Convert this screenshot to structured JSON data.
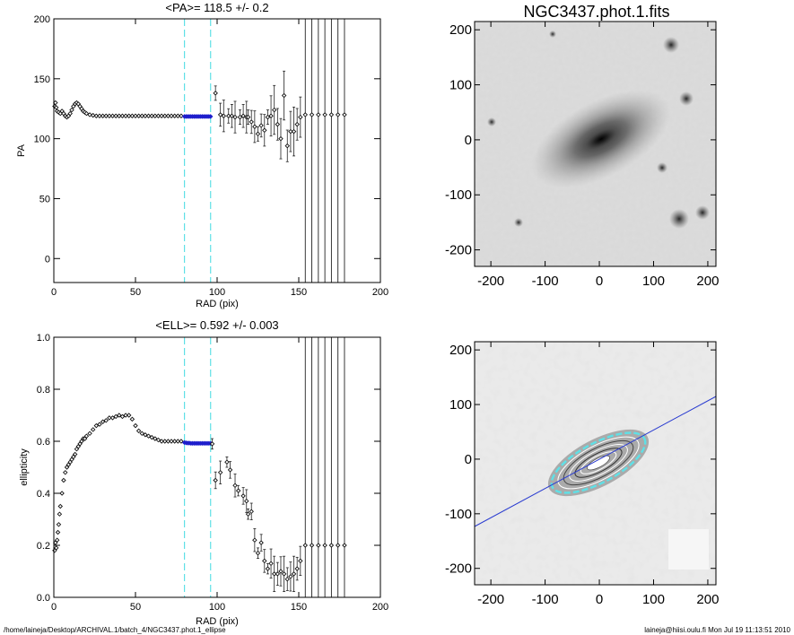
{
  "chart_data": [
    {
      "type": "scatter",
      "title": "<PA>= 118.5 +/-   0.2",
      "xlabel": "RAD (pix)",
      "ylabel": "PA",
      "xlim": [
        0,
        200
      ],
      "ylim": [
        -20,
        200
      ],
      "xticks": [
        0,
        50,
        100,
        150,
        200
      ],
      "yticks": [
        0,
        50,
        100,
        150,
        200
      ],
      "fit_range": [
        80,
        96
      ],
      "series": [
        {
          "x": [
            0.5,
            1,
            1.5,
            2,
            3,
            4,
            5,
            6,
            7,
            8,
            9,
            10,
            11,
            12,
            13,
            14,
            15,
            16,
            17,
            18,
            19,
            20,
            22,
            24,
            26,
            28,
            30,
            32,
            34,
            36,
            38,
            40,
            42,
            44,
            46,
            48,
            50,
            52,
            54,
            56,
            58,
            60,
            62,
            64,
            66,
            68,
            70,
            72,
            74,
            76,
            78
          ],
          "y": [
            127,
            130,
            126,
            123,
            122,
            121,
            123,
            121,
            119,
            118,
            119,
            121,
            124,
            127,
            129,
            130,
            129,
            127,
            125,
            123,
            122,
            121,
            120,
            119.5,
            119,
            119,
            119,
            119,
            119,
            119,
            119,
            119,
            119,
            119,
            119,
            119,
            119,
            119,
            119,
            119,
            119,
            119,
            119,
            119,
            119,
            119,
            119,
            119,
            119,
            119,
            119
          ]
        },
        {
          "x": [
            80,
            81,
            82,
            83,
            84,
            85,
            86,
            87,
            88,
            89,
            90,
            91,
            92,
            93,
            94,
            95,
            96
          ],
          "y": [
            118.5,
            118.5,
            118.5,
            118.5,
            118.5,
            118.5,
            118.5,
            118.5,
            118.5,
            118.5,
            118.5,
            118.5,
            118.5,
            118.5,
            118.5,
            118.5,
            118.5
          ]
        },
        {
          "x": [
            99,
            102,
            104,
            107,
            109,
            111,
            114,
            116,
            118,
            119,
            121,
            123,
            125,
            127,
            129,
            131,
            133,
            135,
            137,
            139,
            141,
            143,
            145,
            147,
            149,
            151
          ],
          "y": [
            138,
            120,
            119,
            119,
            119,
            118,
            118,
            119,
            118,
            118,
            114,
            110,
            104,
            111,
            107,
            118,
            119,
            124,
            112,
            100,
            136,
            94,
            106,
            106,
            112,
            118
          ]
        },
        {
          "x": [
            154,
            158,
            162,
            166,
            170,
            174,
            178
          ],
          "y": [
            120,
            120,
            120,
            120,
            120,
            120,
            120
          ]
        }
      ]
    },
    {
      "type": "scatter",
      "title": "<ELL>= 0.592 +/-  0.003",
      "xlabel": "RAD (pix)",
      "ylabel": "ellipticity",
      "xlim": [
        0,
        200
      ],
      "ylim": [
        0,
        1
      ],
      "xticks": [
        0,
        50,
        100,
        150,
        200
      ],
      "yticks": [
        0.0,
        0.2,
        0.4,
        0.6,
        0.8,
        1.0
      ],
      "fit_range": [
        80,
        96
      ],
      "series": [
        {
          "x": [
            0.5,
            1,
            1.5,
            2,
            2.5,
            3,
            3.5,
            4,
            5,
            6,
            7,
            8,
            9,
            10,
            11,
            12,
            13,
            14,
            15,
            16,
            17,
            18,
            19,
            20,
            22,
            24,
            26,
            28,
            30,
            32,
            34,
            36,
            38,
            40,
            42,
            44,
            46,
            48,
            50,
            52,
            54,
            56,
            58,
            60,
            62,
            64,
            66,
            68,
            70,
            72,
            74,
            76,
            78
          ],
          "y": [
            0.18,
            0.21,
            0.19,
            0.22,
            0.25,
            0.28,
            0.32,
            0.35,
            0.4,
            0.45,
            0.48,
            0.5,
            0.51,
            0.52,
            0.53,
            0.54,
            0.55,
            0.57,
            0.58,
            0.59,
            0.6,
            0.61,
            0.61,
            0.62,
            0.63,
            0.645,
            0.66,
            0.665,
            0.675,
            0.68,
            0.69,
            0.69,
            0.695,
            0.7,
            0.695,
            0.7,
            0.7,
            0.685,
            0.66,
            0.64,
            0.63,
            0.625,
            0.62,
            0.615,
            0.61,
            0.605,
            0.6,
            0.6,
            0.6,
            0.6,
            0.6,
            0.6,
            0.6
          ]
        },
        {
          "x": [
            80,
            81,
            82,
            83,
            84,
            85,
            86,
            87,
            88,
            89,
            90,
            91,
            92,
            93,
            94,
            95,
            96
          ],
          "y": [
            0.595,
            0.594,
            0.593,
            0.593,
            0.592,
            0.592,
            0.592,
            0.592,
            0.592,
            0.592,
            0.592,
            0.592,
            0.592,
            0.592,
            0.592,
            0.592,
            0.592
          ]
        },
        {
          "x": [
            97,
            99,
            102,
            106,
            108,
            111,
            113,
            116,
            118,
            119,
            121,
            123,
            125,
            127,
            129,
            131,
            133,
            135,
            137,
            139,
            141,
            143,
            145,
            147,
            149,
            151
          ],
          "y": [
            0.59,
            0.45,
            0.48,
            0.52,
            0.49,
            0.43,
            0.41,
            0.39,
            0.37,
            0.32,
            0.33,
            0.22,
            0.17,
            0.21,
            0.14,
            0.11,
            0.13,
            0.09,
            0.09,
            0.1,
            0.09,
            0.07,
            0.08,
            0.09,
            0.11,
            0.14
          ]
        },
        {
          "x": [
            154,
            158,
            162,
            166,
            170,
            174,
            178
          ],
          "y": [
            0.2,
            0.2,
            0.2,
            0.2,
            0.2,
            0.2,
            0.2
          ]
        }
      ]
    }
  ],
  "images": {
    "title": "NGC3437.phot.1.fits",
    "xticks": [
      -200,
      -100,
      0,
      100,
      200
    ],
    "yticks": [
      200,
      100,
      0,
      -100,
      -200
    ],
    "range": [
      -230,
      215
    ]
  },
  "footer": {
    "path": "/home/laineja/Desktop/ARCHIVAL.1/batch_4/NGC3437.phot.1_ellipse",
    "stamp": "laineja@hiisi.oulu.fi  Mon Jul 19 11:13:51 2010"
  },
  "colors": {
    "fit_points": "#1e1ecc",
    "fit_range": "#5fe0e6",
    "axis_line": "#2a3cd0"
  }
}
